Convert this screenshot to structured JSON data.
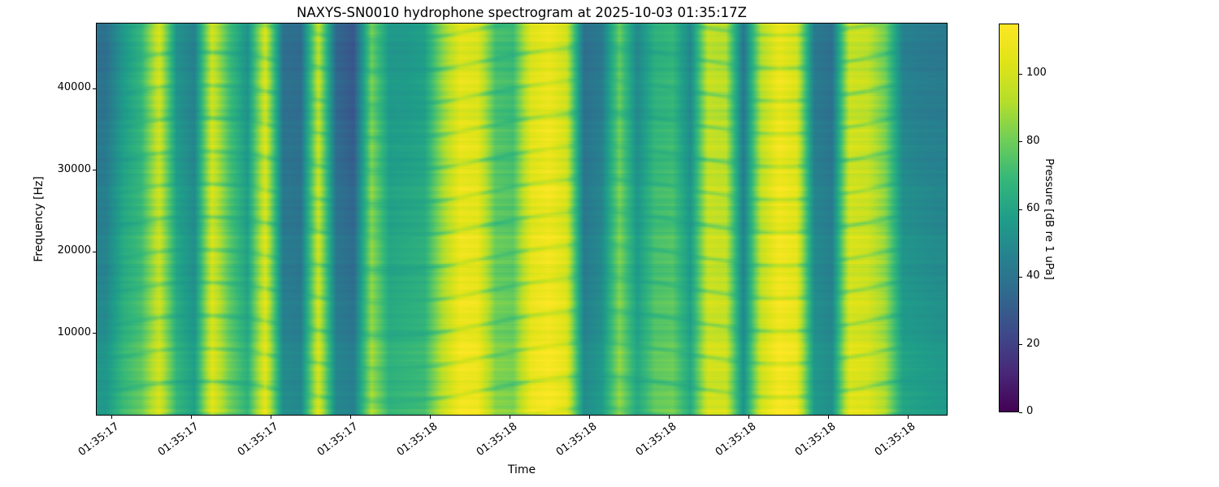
{
  "figure": {
    "background": "#ffffff"
  },
  "chart_data": {
    "type": "heatmap",
    "title": "NAXYS-SN0010 hydrophone spectrogram at 2025-10-03 01:35:17Z",
    "xlabel": "Time",
    "ylabel": "Frequency [Hz]",
    "x_tick_labels": [
      "01:35:17",
      "01:35:17",
      "01:35:17",
      "01:35:17",
      "01:35:18",
      "01:35:18",
      "01:35:18",
      "01:35:18",
      "01:35:18",
      "01:35:18",
      "01:35:18"
    ],
    "y_ticks_hz": [
      10000,
      20000,
      30000,
      40000
    ],
    "freq_range_hz": [
      0,
      48000
    ],
    "grid": "off",
    "colorbar": {
      "label": "Pressure [dB re 1 uPa]",
      "ticks": [
        0,
        20,
        40,
        60,
        80,
        100
      ],
      "vmin": 0,
      "vmax": 115,
      "colormap": "viridis"
    },
    "viridis_stops": [
      "#440154",
      "#482878",
      "#3e4989",
      "#31688e",
      "#26828e",
      "#1f9e89",
      "#35b779",
      "#6ece58",
      "#b5de2b",
      "#dfe318",
      "#fde725"
    ],
    "grid_values_db": {
      "rows_freq_hz": [
        44000,
        34000,
        24000,
        14000,
        4000
      ],
      "rows": [
        [
          38,
          55,
          68,
          100,
          52,
          45,
          98,
          70,
          52,
          100,
          38,
          36,
          95,
          34,
          28,
          80,
          55,
          55,
          58,
          85,
          105,
          102,
          72,
          70,
          102,
          108,
          98,
          38,
          42,
          78,
          48,
          65,
          68,
          48,
          95,
          92,
          40,
          92,
          108,
          100,
          42,
          38,
          97,
          95,
          80,
          45,
          43,
          42
        ],
        [
          42,
          58,
          68,
          98,
          55,
          47,
          100,
          72,
          55,
          102,
          40,
          38,
          96,
          36,
          30,
          83,
          57,
          58,
          60,
          87,
          107,
          104,
          75,
          72,
          104,
          110,
          100,
          40,
          45,
          80,
          50,
          68,
          70,
          50,
          96,
          94,
          42,
          94,
          110,
          103,
          44,
          40,
          99,
          97,
          82,
          48,
          46,
          45
        ],
        [
          45,
          62,
          70,
          97,
          60,
          50,
          100,
          75,
          58,
          102,
          42,
          40,
          97,
          40,
          35,
          85,
          60,
          62,
          64,
          88,
          108,
          106,
          78,
          76,
          105,
          110,
          102,
          42,
          48,
          82,
          55,
          72,
          74,
          55,
          97,
          95,
          45,
          95,
          110,
          105,
          48,
          44,
          100,
          98,
          85,
          52,
          50,
          48
        ],
        [
          48,
          64,
          72,
          96,
          62,
          52,
          101,
          76,
          60,
          103,
          44,
          42,
          98,
          42,
          38,
          86,
          62,
          64,
          66,
          90,
          109,
          107,
          80,
          78,
          106,
          111,
          103,
          44,
          50,
          83,
          57,
          74,
          76,
          57,
          98,
          96,
          47,
          96,
          111,
          106,
          50,
          46,
          101,
          99,
          87,
          55,
          53,
          51
        ],
        [
          55,
          70,
          78,
          100,
          68,
          58,
          104,
          80,
          66,
          105,
          50,
          48,
          101,
          48,
          45,
          89,
          67,
          69,
          71,
          94,
          111,
          109,
          84,
          82,
          108,
          113,
          106,
          50,
          56,
          86,
          62,
          78,
          80,
          62,
          100,
          99,
          52,
          99,
          113,
          108,
          55,
          51,
          104,
          102,
          90,
          60,
          58,
          56
        ]
      ]
    }
  }
}
